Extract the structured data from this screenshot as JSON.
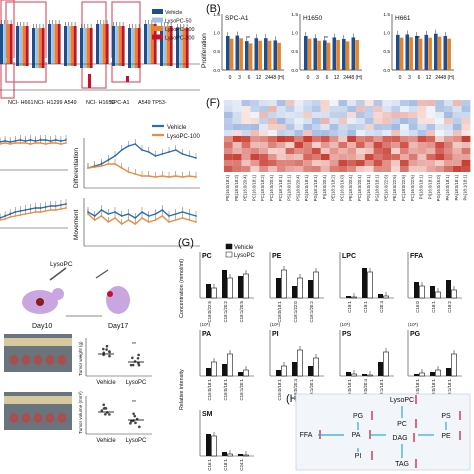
{
  "panels": {
    "A": {
      "legend": [
        "Vehicle",
        "LysoPC-50",
        "LysoPC-100",
        "LysoPC-200"
      ],
      "colors": [
        "#1f4e8c",
        "#9ec3e6",
        "#e8832a",
        "#c8102e"
      ],
      "cells": [
        "NCI-\nH661",
        "NCI-\nH1299",
        "A549",
        "NCI-\nH1650",
        "SPC-A1",
        "A549 TP53-"
      ]
    },
    "B": {
      "label": "(B)",
      "ylabel": "Proliferation",
      "titles": [
        "SPC-A1",
        "H1650",
        "H661"
      ],
      "xticks": [
        "0",
        "3",
        "6",
        "12",
        "24",
        "48 (H)"
      ],
      "yticks": [
        "1.5",
        "1.0",
        "0.5",
        "0.0"
      ],
      "stars": "**"
    },
    "C": {
      "legend": [
        "Vehicle",
        "LysoPC-100"
      ],
      "colors": [
        "#2f6db1",
        "#f08a3c"
      ],
      "ylabels": [
        "Differentiation",
        "Movement"
      ]
    },
    "D": {
      "drug": "LysoPC",
      "days": [
        "Day10",
        "Day17"
      ],
      "groups": [
        "Vehicle",
        "LysoPC"
      ],
      "ylabel1": "Tumor weight (g)",
      "ylabel2": "Tumor volume (mm³)",
      "stars": "**"
    },
    "F": {
      "label": "(F)",
      "lipids": [
        "PE(16:0/18:1)",
        "PE(18:0/18:2)",
        "PE(16:0/20:4)",
        "PC(16:0/18:1)",
        "PC(18:0/18:2)",
        "PC(16:0/20:4)",
        "PC(18:1/18:1)",
        "PS(18:0/18:1)",
        "PS(18:0/20:4)",
        "PG(16:0/18:1)",
        "PG(18:1/18:1)",
        "PI(18:0/20:4)",
        "PE(18:1/18:2)",
        "PC(16:0/16:0)",
        "PE(18:0/20:4)",
        "PC(18:0/20:4)",
        "PS(16:0/18:1)",
        "PG(18:0/18:1)",
        "PE(16:0/22:6)",
        "PE(18:0/22:6)",
        "PC(18:0/22:6)",
        "PC(16:0/22:6)",
        "PI(18:0/18:1)",
        "PI(16:0/18:1)",
        "PG(16:0/16:0)",
        "PA(16:0/18:1)",
        "PA(18:0/18:1)",
        "PA(18:1/18:1)"
      ]
    },
    "G": {
      "label": "(G)",
      "legend": [
        "Vehicle",
        "LysoPC"
      ],
      "ylabel_top": "Concentration (mmol/ml)",
      "ylabel_bottom": "Relative intensity",
      "groups": [
        {
          "title": "PC",
          "x": [
            "C18:0/22:6",
            "C18:1/20:2",
            "C18:1/20:5"
          ]
        },
        {
          "title": "PE",
          "x": [
            "C18:0/18:1",
            "C18:1/22:0",
            "C18:1/20:2"
          ]
        },
        {
          "title": "LPC",
          "x": [
            "C18:1",
            "C18:1",
            "C20:4"
          ]
        },
        {
          "title": "FFA",
          "x": [
            "C16:0",
            "C18:1",
            "C18:2"
          ]
        },
        {
          "title": "PA",
          "x": [
            "C16:0/18:1",
            "C18:0/18:1",
            "C18:1/20:1"
          ]
        },
        {
          "title": "PI",
          "x": [
            "C16:0/18:1",
            "C18:0/20:4",
            "C18:1/20:1"
          ]
        },
        {
          "title": "PS",
          "x": [
            "C16:0/18:1",
            "C18:0/20:4",
            "C18:1/18:1"
          ]
        },
        {
          "title": "PG",
          "x": [
            "C16:0/18:1",
            "C18:0/18:1",
            "C18:1/18:1"
          ]
        },
        {
          "title": "SM",
          "x": [
            "C16:1",
            "C18:1",
            "C24:1"
          ]
        }
      ],
      "exponents": [
        "(10⁵)",
        "(10⁶)",
        "(10⁵)",
        "(10⁵)"
      ]
    },
    "H": {
      "label": "(H)",
      "nodes": [
        "LysoPC",
        "PG",
        "PC",
        "PS",
        "FFA",
        "PA",
        "DAG",
        "PE",
        "PI",
        "TAG"
      ]
    }
  }
}
